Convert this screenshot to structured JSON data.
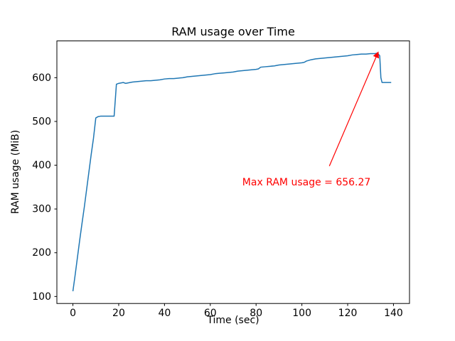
{
  "figure": {
    "title": "RAM usage over Time",
    "xlabel": "Time (sec)",
    "ylabel": "RAM usage (MiB)"
  },
  "chart_data": {
    "type": "line",
    "title": "RAM usage over Time",
    "xlabel": "Time (sec)",
    "ylabel": "RAM usage (MiB)",
    "xlim": [
      -7,
      147
    ],
    "ylim": [
      84,
      684
    ],
    "xticks": [
      0,
      20,
      40,
      60,
      80,
      100,
      120,
      140
    ],
    "yticks": [
      100,
      200,
      300,
      400,
      500,
      600
    ],
    "grid": false,
    "legend": "none",
    "line_color": "#1f77b4",
    "max_value": 656.27,
    "series": [
      {
        "name": "RAM usage",
        "x": [
          0,
          1,
          2,
          3,
          4,
          5,
          6,
          7,
          8,
          9,
          10,
          11,
          12,
          14,
          16,
          18,
          19,
          20,
          21,
          22,
          23,
          24,
          26,
          28,
          30,
          32,
          34,
          36,
          38,
          40,
          42,
          44,
          46,
          48,
          50,
          52,
          54,
          56,
          58,
          60,
          62,
          64,
          66,
          68,
          70,
          72,
          74,
          76,
          78,
          80,
          81,
          82,
          84,
          86,
          88,
          90,
          92,
          94,
          96,
          98,
          100,
          101,
          102,
          104,
          106,
          108,
          110,
          112,
          114,
          116,
          118,
          120,
          122,
          124,
          126,
          128,
          130,
          132,
          133,
          134,
          134.5,
          135,
          136,
          138,
          139
        ],
        "y": [
          112,
          150,
          190,
          230,
          268,
          305,
          345,
          385,
          425,
          462,
          508,
          511,
          512,
          512,
          512,
          512,
          585,
          587,
          588,
          589,
          587,
          588,
          590,
          591,
          592,
          593,
          593,
          594,
          595,
          597,
          598,
          598,
          599,
          600,
          602,
          603,
          604,
          605,
          606,
          607,
          609,
          610,
          611,
          612,
          613,
          615,
          616,
          617,
          618,
          619,
          620,
          624,
          625,
          626,
          627,
          629,
          630,
          631,
          632,
          633,
          634,
          635,
          638,
          641,
          643,
          644,
          645,
          646,
          647,
          648,
          649,
          650,
          652,
          653,
          654,
          654,
          655,
          655,
          656.27,
          650,
          600,
          589,
          589,
          589,
          589
        ]
      }
    ],
    "annotation": {
      "text": "Max RAM usage = 656.27",
      "color": "#ff0000",
      "arrow_tip": [
        133.3,
        658
      ],
      "arrow_tail": [
        112,
        398
      ],
      "text_pos": [
        102,
        360
      ]
    }
  }
}
